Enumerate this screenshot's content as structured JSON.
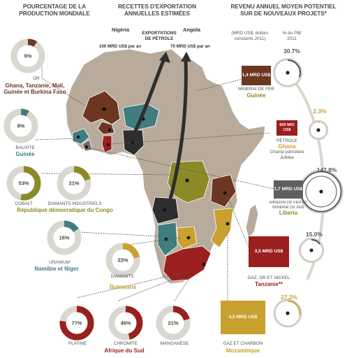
{
  "headers": {
    "left": [
      "POURCENTAGE DE LA",
      "PRODUCTION MONDIALE"
    ],
    "middle": [
      "RECETTES D'EXPORTATION",
      "ANNUELLES ESTIMÉES"
    ],
    "right": [
      "REVENU ANNUEL MOYEN POTENTIEL",
      "SUR DE NOUVEAUX PROJETS*"
    ]
  },
  "export_panel": {
    "country_left": "Nigéria",
    "country_right": "Angola",
    "title": [
      "EXPORTATIONS",
      "DE PÉTROLE"
    ],
    "value_left": "100 MRD US$ par an",
    "value_right": "70 MRD US$ par an"
  },
  "right_subheads": {
    "left": [
      "(MRD US$, dollars",
      "constants 2011)"
    ],
    "right": [
      "% du PIB",
      "2011"
    ]
  },
  "colors": {
    "gold": "#a88a14",
    "brown": "#6b3722",
    "red": "#9a1f1f",
    "teal": "#3f7d80",
    "olive": "#8b8a26",
    "dark": "#2e2e2e",
    "grey_ring": "#d9d7cf",
    "ocre": "#c8a12e",
    "map_land": "#b7a99a"
  },
  "chart_data": [
    {
      "type": "pie",
      "title": "POURCENTAGE DE LA PRODUCTION MONDIALE",
      "slices": [
        {
          "commodity": "OR",
          "place": "Ghana, Tanzanie, Mali, Guinée et Burkina Faso",
          "value": 9,
          "label": "9%",
          "color": "#6b3722"
        },
        {
          "commodity": "BAUXITE",
          "place": "Guinée",
          "value": 8,
          "label": "8%",
          "color": "#3f7d80"
        },
        {
          "commodity": "COBALT",
          "place": "République démocratique du Congo",
          "value": 53,
          "label": "53%",
          "color": "#8b8a26"
        },
        {
          "commodity": "DIAMANTS INDUSTRIELS",
          "place": "",
          "value": 21,
          "label": "21%",
          "color": "#8b8a26"
        },
        {
          "commodity": "URANIUM",
          "place": "Namibie et Niger",
          "value": 16,
          "label": "16%",
          "color": "#3f7d80"
        },
        {
          "commodity": "DIAMANTS",
          "place": "Botswana",
          "value": 22,
          "label": "22%",
          "color": "#c8a12e"
        },
        {
          "commodity": "PLATINE",
          "place": "",
          "value": 77,
          "label": "77%",
          "color": "#9a1f1f"
        },
        {
          "commodity": "CHROMITE",
          "place": "Afrique du Sud",
          "value": 46,
          "label": "46%",
          "color": "#9a1f1f"
        },
        {
          "commodity": "MANGANÈSE",
          "place": "",
          "value": 21,
          "label": "21%",
          "color": "#9a1f1f"
        }
      ]
    },
    {
      "type": "bar",
      "title": "REVENU ANNUEL MOYEN POTENTIEL SUR DE NOUVEAUX PROJETS*",
      "categories": [
        "Guinée",
        "Ghana",
        "Liberia",
        "Tanzanie**",
        "Mozambique"
      ],
      "series": [
        {
          "values": [
            1.4,
            0.65,
            1.7,
            3.5,
            3.5
          ]
        },
        {
          "values": [
            30.7,
            2.3,
            147.8,
            15.0,
            27.3
          ]
        }
      ],
      "value_labels": [
        "1,4 MRD US$",
        "650 MIO US$",
        "1,7 MRD US$",
        "3,5 MRD US$",
        "3,5 MRD US$"
      ],
      "pct_labels": [
        "30.7%",
        "2.3%",
        "147.8%",
        "15.0%",
        "27.3%"
      ],
      "kinds": [
        "MINERAI DE FER",
        "PÉTROLE",
        "MINERAI DE FER ET MINERAI DE FER",
        "GAZ, OR ET NICKEL",
        "GAZ ET CHARBON"
      ],
      "notes": [
        "",
        "Champ pétrolière Jubilee",
        "",
        "",
        ""
      ],
      "colors": [
        "#6b3722",
        "#9a1f1f",
        "#5f5f5f",
        "#9a1f1f",
        "#c8a12e"
      ]
    },
    {
      "type": "bar",
      "title": "RECETTES D'EXPORTATION ANNUELLES ESTIMÉES",
      "categories": [
        "Nigéria",
        "Angola"
      ],
      "values": [
        100,
        70
      ],
      "ylabel": "MRD US$ par an"
    }
  ]
}
